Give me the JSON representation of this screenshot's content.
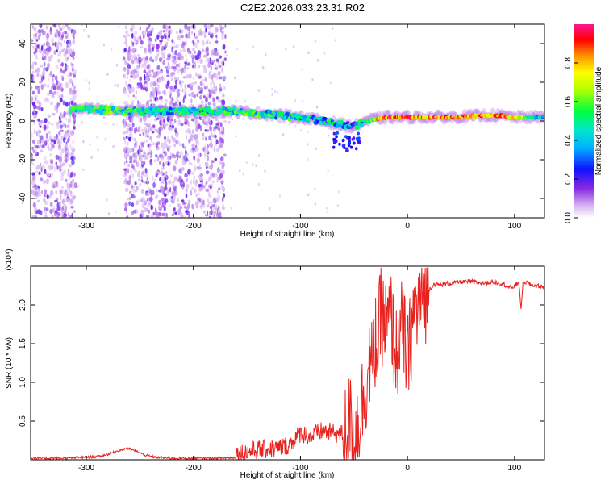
{
  "title": "C2E2.2026.033.23.31.R02",
  "chart_data": [
    {
      "type": "heatmap",
      "xlabel": "Height of straight line (km)",
      "ylabel": "Frequency (Hz)",
      "xlim": [
        -352,
        128
      ],
      "ylim": [
        -50,
        50
      ],
      "xticks": [
        -300,
        -200,
        -100,
        0,
        100
      ],
      "yticks": [
        -40,
        -20,
        0,
        20,
        40
      ],
      "colorbar": {
        "label": "Normalized spectral amplitude",
        "range": [
          0,
          1
        ],
        "ticks": [
          0.0,
          0.2,
          0.4,
          0.6,
          0.8
        ],
        "tick_labels": [
          "0.0",
          "0.2",
          "0.4",
          "0.6",
          "0.8"
        ]
      },
      "ridge": {
        "x": [
          -315,
          -300,
          -250,
          -200,
          -160,
          -140,
          -120,
          -100,
          -80,
          -60,
          -50,
          -40,
          -30,
          -20,
          0,
          40,
          80,
          100,
          128
        ],
        "y": [
          6,
          6,
          5,
          5,
          5,
          4,
          3,
          2,
          0,
          -2,
          -3,
          0,
          1,
          2,
          2,
          2,
          3,
          2,
          2
        ],
        "amplitude": [
          0.55,
          0.6,
          0.55,
          0.5,
          0.55,
          0.55,
          0.5,
          0.5,
          0.5,
          0.45,
          0.4,
          0.55,
          0.75,
          0.9,
          0.9,
          0.92,
          0.9,
          0.85,
          0.4
        ]
      },
      "noise_regions": [
        [
          -352,
          -310
        ],
        [
          -265,
          -170
        ]
      ]
    },
    {
      "type": "line",
      "xlabel": "Height of straight line (km)",
      "ylabel": "SNR (10 * v/v)",
      "y_multiplier": "(x10⁴)",
      "xlim": [
        -352,
        128
      ],
      "ylim": [
        0,
        2.5
      ],
      "xticks": [
        -300,
        -200,
        -100,
        0,
        100
      ],
      "yticks": [
        0.5,
        1.0,
        1.5,
        2.0
      ],
      "ytick_labels": [
        "0.5",
        "1.0",
        "1.5",
        "2.0"
      ],
      "color": "#e8231f",
      "series": [
        {
          "x": [
            -352,
            -320,
            -290,
            -280,
            -270,
            -262,
            -255,
            -245,
            -235,
            -220,
            -200,
            -180,
            -160,
            -150,
            -140,
            -120,
            -110,
            -105,
            -100,
            -90,
            -80,
            -70,
            -60,
            -55,
            -50,
            -45,
            -40,
            -35,
            -32,
            -30,
            -28,
            -25,
            -20,
            -15,
            -12,
            -10,
            -8,
            -5,
            -2,
            0,
            5,
            10,
            15,
            20,
            25,
            30,
            40,
            50,
            60,
            70,
            80,
            90,
            95,
            100,
            104,
            106,
            108,
            110,
            115,
            120,
            128
          ],
          "y": [
            0.02,
            0.02,
            0.04,
            0.07,
            0.12,
            0.15,
            0.12,
            0.06,
            0.03,
            0.02,
            0.02,
            0.02,
            0.03,
            0.05,
            0.08,
            0.1,
            0.15,
            0.22,
            0.3,
            0.25,
            0.32,
            0.3,
            0.28,
            0.5,
            0.35,
            0.55,
            0.9,
            1.3,
            1.1,
            1.6,
            1.4,
            1.9,
            1.7,
            1.8,
            1.5,
            1.3,
            1.6,
            1.7,
            1.5,
            1.2,
            1.85,
            1.95,
            2.1,
            2.2,
            2.27,
            2.26,
            2.28,
            2.3,
            2.3,
            2.28,
            2.3,
            2.27,
            2.22,
            2.24,
            2.3,
            1.95,
            2.28,
            2.3,
            2.26,
            2.25,
            2.23
          ]
        }
      ]
    }
  ]
}
